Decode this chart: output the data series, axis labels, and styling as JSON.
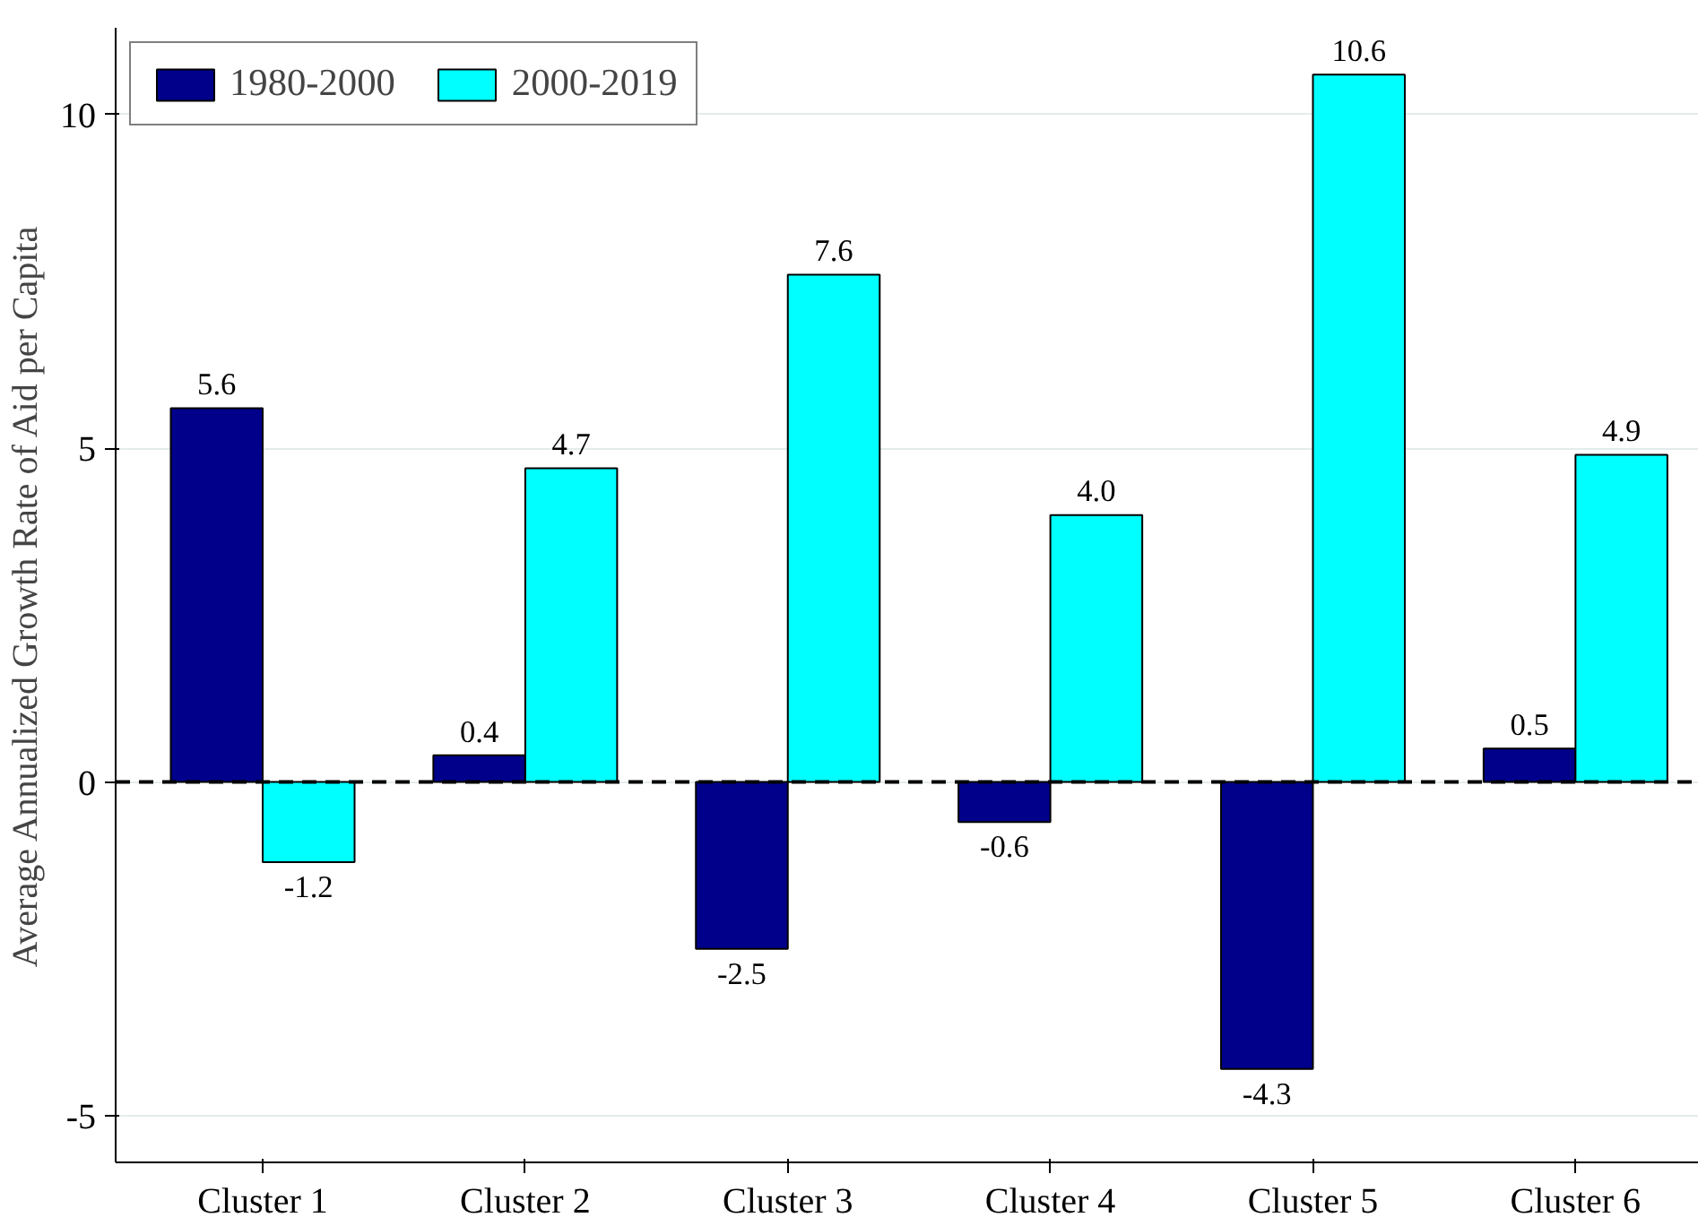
{
  "chart_data": {
    "type": "bar",
    "ylabel": "Average Annualized Growth Rate of Aid per Capita",
    "categories": [
      "Cluster 1",
      "Cluster 2",
      "Cluster 3",
      "Cluster 4",
      "Cluster 5",
      "Cluster 6"
    ],
    "series": [
      {
        "name": "1980-2000",
        "color": "#00008b",
        "values": [
          5.6,
          0.4,
          -2.5,
          -0.6,
          -4.3,
          0.5
        ],
        "value_labels": [
          "5.6",
          "0.4",
          "-2.5",
          "-0.6",
          "-4.3",
          "0.5"
        ]
      },
      {
        "name": "2000-2019",
        "color": "#00ffff",
        "values": [
          -1.2,
          4.7,
          7.6,
          4.0,
          10.6,
          4.9
        ],
        "value_labels": [
          "-1.2",
          "4.7",
          "7.6",
          "4.0",
          "10.6",
          "4.9"
        ]
      }
    ],
    "ylim": [
      -5.7,
      11.3
    ],
    "yticks": [
      -5,
      0,
      5,
      10
    ],
    "grid": "y",
    "legend": "top left",
    "ref_lines": [
      {
        "axis": "y",
        "value": 0,
        "color": "#000000",
        "line_style": "dashed"
      }
    ]
  }
}
